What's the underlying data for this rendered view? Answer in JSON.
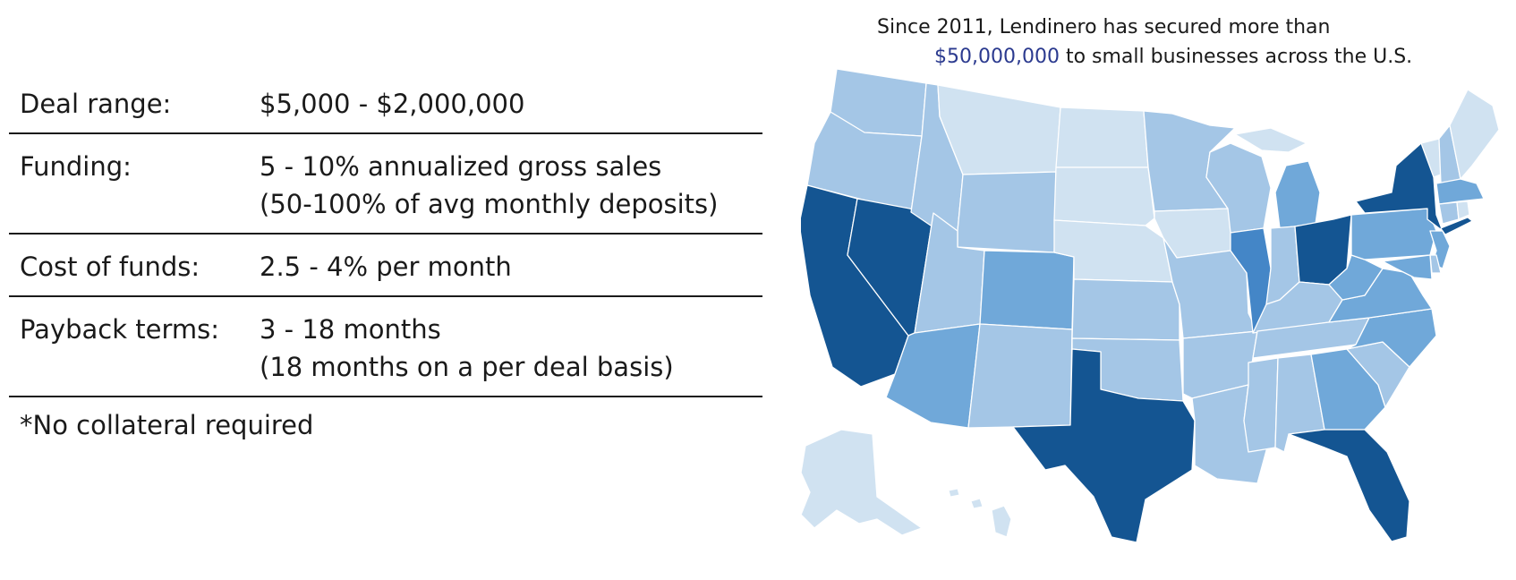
{
  "terms": [
    {
      "label": "Deal range:",
      "lines": [
        "$5,000 - $2,000,000"
      ]
    },
    {
      "label": "Funding:",
      "lines": [
        "5 - 10% annualized gross sales",
        "(50-100% of avg monthly deposits)"
      ]
    },
    {
      "label": "Cost of funds:",
      "lines": [
        "2.5 - 4% per month"
      ]
    },
    {
      "label": "Payback terms:",
      "lines": [
        "3 - 18 months",
        "(18 months on a per deal basis)"
      ]
    }
  ],
  "note": "*No collateral required",
  "headline": {
    "line1": "Since 2011, Lendinero has secured more than",
    "amount": "$50,000,000",
    "line2_rest": " to small businesses across the U.S."
  },
  "map": {
    "colors": {
      "level1": "#d0e2f1",
      "level2": "#a4c6e6",
      "level3": "#70a8d9",
      "level4": "#4486c7",
      "level5": "#145592"
    },
    "states": [
      {
        "id": "WA",
        "level": 2
      },
      {
        "id": "OR",
        "level": 2
      },
      {
        "id": "CA",
        "level": 5
      },
      {
        "id": "NV",
        "level": 5
      },
      {
        "id": "ID",
        "level": 2
      },
      {
        "id": "MT",
        "level": 1
      },
      {
        "id": "WY",
        "level": 2
      },
      {
        "id": "UT",
        "level": 2
      },
      {
        "id": "AZ",
        "level": 3
      },
      {
        "id": "CO",
        "level": 3
      },
      {
        "id": "NM",
        "level": 2
      },
      {
        "id": "ND",
        "level": 1
      },
      {
        "id": "SD",
        "level": 1
      },
      {
        "id": "NE",
        "level": 1
      },
      {
        "id": "KS",
        "level": 2
      },
      {
        "id": "OK",
        "level": 2
      },
      {
        "id": "TX",
        "level": 5
      },
      {
        "id": "MN",
        "level": 2
      },
      {
        "id": "IA",
        "level": 1
      },
      {
        "id": "MO",
        "level": 2
      },
      {
        "id": "AR",
        "level": 2
      },
      {
        "id": "LA",
        "level": 2
      },
      {
        "id": "WI",
        "level": 2
      },
      {
        "id": "IL",
        "level": 4
      },
      {
        "id": "MI",
        "level": 3
      },
      {
        "id": "IN",
        "level": 2
      },
      {
        "id": "OH",
        "level": 5
      },
      {
        "id": "KY",
        "level": 2
      },
      {
        "id": "TN",
        "level": 2
      },
      {
        "id": "MS",
        "level": 2
      },
      {
        "id": "AL",
        "level": 2
      },
      {
        "id": "GA",
        "level": 3
      },
      {
        "id": "FL",
        "level": 5
      },
      {
        "id": "SC",
        "level": 2
      },
      {
        "id": "NC",
        "level": 3
      },
      {
        "id": "VA",
        "level": 3
      },
      {
        "id": "WV",
        "level": 3
      },
      {
        "id": "PA",
        "level": 3
      },
      {
        "id": "NY",
        "level": 5
      },
      {
        "id": "VT",
        "level": 1
      },
      {
        "id": "NH",
        "level": 2
      },
      {
        "id": "ME",
        "level": 1
      },
      {
        "id": "MA",
        "level": 3
      },
      {
        "id": "CT",
        "level": 2
      },
      {
        "id": "RI",
        "level": 1
      },
      {
        "id": "NJ",
        "level": 3
      },
      {
        "id": "DE",
        "level": 2
      },
      {
        "id": "MD",
        "level": 3
      },
      {
        "id": "AK",
        "level": 1
      },
      {
        "id": "HI",
        "level": 1
      }
    ]
  }
}
